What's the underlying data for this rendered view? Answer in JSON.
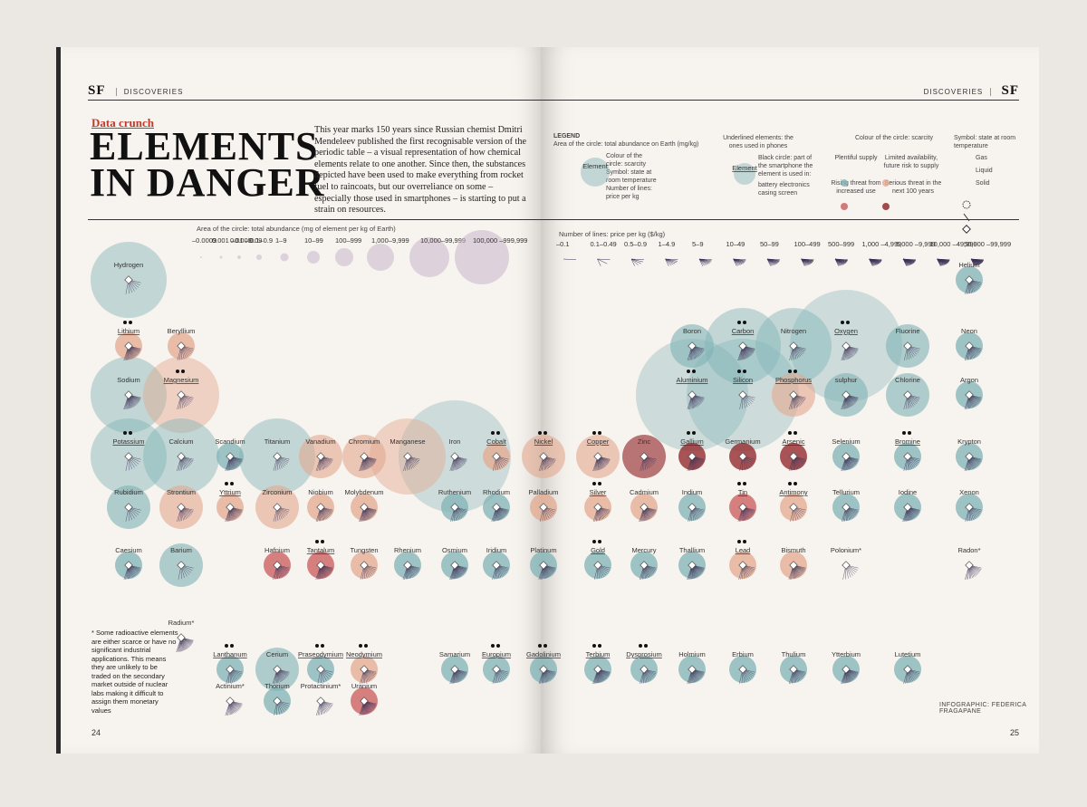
{
  "header": {
    "section": "DISCOVERIES",
    "logo": "SF"
  },
  "kicker": "Data crunch",
  "title_line1": "ELEMENTS",
  "title_line2": "IN DANGER",
  "intro": "This year marks 150 years since Russian chemist Dmitri Mendeleev published the first recognisable version of the periodic table – a visual representation of how chemical elements relate to one another. Since then, the substances depicted have been used to make everything from rocket fuel to raincoats, but our overreliance on some – especially those used in smartphones – is starting to put a strain on resources.",
  "legend": {
    "heading": "LEGEND",
    "area": "Area of the circle: total abundance on Earth (mg/kg)",
    "colour": "Colour of the circle: scarcity",
    "symbol": "Symbol: state at room temperature",
    "lines": "Number of lines: price per kg",
    "element": "Element",
    "underlined": "Underlined elements: the ones used in phones",
    "black_circle": "Black circle: part of the smartphone the element is used in:",
    "parts": "battery  electronics  casing  screen",
    "colour_scarcity": "Colour of the circle: scarcity",
    "plentiful": "Plentiful supply",
    "limited": "Limited availability, future risk to supply",
    "rising": "Rising threat from increased use",
    "serious": "Serious threat in the next 100 years",
    "symbol_state": "Symbol: state at room temperature",
    "gas": "Gas",
    "liquid": "Liquid",
    "solid": "Solid"
  },
  "scale_area": {
    "title": "Area of the circle: total abundance (mg of element per kg of Earth)",
    "labels": [
      "–0.0009",
      "0.001 –0.009",
      "0.01 –0.09",
      "0.1–0.9",
      "1–9",
      "10–99",
      "100–999",
      "1,000–9,999",
      "10,000–99,999",
      "100,000 –999,999"
    ]
  },
  "scale_lines": {
    "title": "Number of lines: price per kg ($/kg)",
    "labels": [
      "–0.1",
      "0.1–0.49",
      "0.5–0.9",
      "1–4.9",
      "5–9",
      "10–49",
      "50–99",
      "100–499",
      "500–999",
      "1,000 –4,999",
      "5,000 –9,999",
      "10,000 –49,999",
      "50,000 –99,999"
    ]
  },
  "footnote": "* Some radioactive elements are either scarce or have no significant industrial applications. This means they are unlikely to be traded on the secondary market outside of nuclear labs making it difficult to assign them monetary values",
  "credit": "INFOGRAPHIC: FEDERICA FRAGAPANE",
  "page_left": "24",
  "page_right": "25",
  "colors": {
    "plentiful": "#7fb3b5",
    "limited": "#e3a98f",
    "rising": "#c95a5a",
    "serious": "#8e1f23",
    "ink": "#3a2f55"
  },
  "elements": [
    {
      "n": "Hydrogen",
      "s": "plentiful",
      "a": "l"
    },
    {
      "n": "Helium",
      "s": "plentiful",
      "a": "s"
    },
    {
      "n": "Lithium",
      "s": "limited",
      "a": "s",
      "p": true
    },
    {
      "n": "Beryllium",
      "s": "limited",
      "a": "s"
    },
    {
      "n": "Boron",
      "s": "plentiful",
      "a": "m"
    },
    {
      "n": "Carbon",
      "s": "plentiful",
      "a": "l",
      "p": true
    },
    {
      "n": "Nitrogen",
      "s": "plentiful",
      "a": "l"
    },
    {
      "n": "Oxygen",
      "s": "plentiful",
      "a": "xl",
      "p": true
    },
    {
      "n": "Fluorine",
      "s": "plentiful",
      "a": "m"
    },
    {
      "n": "Neon",
      "s": "plentiful",
      "a": "s"
    },
    {
      "n": "Sodium",
      "s": "plentiful",
      "a": "l"
    },
    {
      "n": "Magnesium",
      "s": "limited",
      "a": "l",
      "p": true
    },
    {
      "n": "Aluminium",
      "s": "plentiful",
      "a": "xl",
      "p": true
    },
    {
      "n": "Silicon",
      "s": "plentiful",
      "a": "xl",
      "p": true
    },
    {
      "n": "Phosphorus",
      "s": "limited",
      "a": "m",
      "p": true
    },
    {
      "n": "sulphur",
      "s": "plentiful",
      "a": "m"
    },
    {
      "n": "Chlorine",
      "s": "plentiful",
      "a": "m"
    },
    {
      "n": "Argon",
      "s": "plentiful",
      "a": "s"
    },
    {
      "n": "Potassium",
      "s": "plentiful",
      "a": "l",
      "p": true
    },
    {
      "n": "Calcium",
      "s": "plentiful",
      "a": "l"
    },
    {
      "n": "Scandium",
      "s": "plentiful",
      "a": "s"
    },
    {
      "n": "Titanium",
      "s": "plentiful",
      "a": "l"
    },
    {
      "n": "Vanadium",
      "s": "limited",
      "a": "m"
    },
    {
      "n": "Chromium",
      "s": "limited",
      "a": "m"
    },
    {
      "n": "Manganese",
      "s": "limited",
      "a": "l"
    },
    {
      "n": "Iron",
      "s": "plentiful",
      "a": "xl"
    },
    {
      "n": "Cobalt",
      "s": "limited",
      "a": "s",
      "p": true
    },
    {
      "n": "Nickel",
      "s": "limited",
      "a": "m",
      "p": true
    },
    {
      "n": "Copper",
      "s": "limited",
      "a": "m",
      "p": true
    },
    {
      "n": "Zinc",
      "s": "serious",
      "a": "m"
    },
    {
      "n": "Gallium",
      "s": "serious",
      "a": "s",
      "p": true
    },
    {
      "n": "Germanium",
      "s": "serious",
      "a": "s"
    },
    {
      "n": "Arsenic",
      "s": "serious",
      "a": "s",
      "p": true
    },
    {
      "n": "Selenium",
      "s": "plentiful",
      "a": "s"
    },
    {
      "n": "Bromine",
      "s": "plentiful",
      "a": "s",
      "p": true
    },
    {
      "n": "Krypton",
      "s": "plentiful",
      "a": "s"
    },
    {
      "n": "Rubidium",
      "s": "plentiful",
      "a": "m"
    },
    {
      "n": "Strontium",
      "s": "limited",
      "a": "m"
    },
    {
      "n": "Yttrium",
      "s": "limited",
      "a": "s",
      "p": true
    },
    {
      "n": "Zirconium",
      "s": "limited",
      "a": "m"
    },
    {
      "n": "Niobium",
      "s": "limited",
      "a": "s"
    },
    {
      "n": "Molybdenum",
      "s": "limited",
      "a": "s"
    },
    {
      "n": "Ruthenium",
      "s": "plentiful",
      "a": "s"
    },
    {
      "n": "Rhodium",
      "s": "plentiful",
      "a": "s"
    },
    {
      "n": "Palladium",
      "s": "limited",
      "a": "s"
    },
    {
      "n": "Silver",
      "s": "limited",
      "a": "s",
      "p": true
    },
    {
      "n": "Cadmium",
      "s": "limited",
      "a": "s"
    },
    {
      "n": "Indium",
      "s": "plentiful",
      "a": "s"
    },
    {
      "n": "Tin",
      "s": "rising",
      "a": "s",
      "p": true
    },
    {
      "n": "Antimony",
      "s": "limited",
      "a": "s",
      "p": true
    },
    {
      "n": "Tellurium",
      "s": "plentiful",
      "a": "s"
    },
    {
      "n": "Iodine",
      "s": "plentiful",
      "a": "s"
    },
    {
      "n": "Xenon",
      "s": "plentiful",
      "a": "s"
    },
    {
      "n": "Caesium",
      "s": "plentiful",
      "a": "s"
    },
    {
      "n": "Barium",
      "s": "plentiful",
      "a": "m"
    },
    {
      "n": "Hafnium",
      "s": "rising",
      "a": "s"
    },
    {
      "n": "Tantalum",
      "s": "rising",
      "a": "s",
      "p": true
    },
    {
      "n": "Tungsten",
      "s": "limited",
      "a": "s"
    },
    {
      "n": "Rhenium",
      "s": "plentiful",
      "a": "s"
    },
    {
      "n": "Osmium",
      "s": "plentiful",
      "a": "s"
    },
    {
      "n": "Iridium",
      "s": "plentiful",
      "a": "s"
    },
    {
      "n": "Platinum",
      "s": "plentiful",
      "a": "s"
    },
    {
      "n": "Gold",
      "s": "plentiful",
      "a": "s",
      "p": true
    },
    {
      "n": "Mercury",
      "s": "plentiful",
      "a": "s"
    },
    {
      "n": "Thallium",
      "s": "plentiful",
      "a": "s"
    },
    {
      "n": "Lead",
      "s": "limited",
      "a": "s",
      "p": true
    },
    {
      "n": "Bismuth",
      "s": "limited",
      "a": "s"
    },
    {
      "n": "Polonium*",
      "s": "none",
      "a": "s"
    },
    {
      "n": "Radon*",
      "s": "none",
      "a": "s"
    },
    {
      "n": "Radium*",
      "s": "none",
      "a": "s"
    },
    {
      "n": "Lanthanum",
      "s": "plentiful",
      "a": "s",
      "p": true
    },
    {
      "n": "Cerium",
      "s": "plentiful",
      "a": "m"
    },
    {
      "n": "Praseodymium",
      "s": "plentiful",
      "a": "s",
      "p": true
    },
    {
      "n": "Neodymium",
      "s": "limited",
      "a": "s",
      "p": true
    },
    {
      "n": "Samarium",
      "s": "plentiful",
      "a": "s"
    },
    {
      "n": "Europium",
      "s": "plentiful",
      "a": "s",
      "p": true
    },
    {
      "n": "Gadolinium",
      "s": "plentiful",
      "a": "s",
      "p": true
    },
    {
      "n": "Terbium",
      "s": "plentiful",
      "a": "s",
      "p": true
    },
    {
      "n": "Dysprosium",
      "s": "plentiful",
      "a": "s",
      "p": true
    },
    {
      "n": "Holmium",
      "s": "plentiful",
      "a": "s"
    },
    {
      "n": "Erbium",
      "s": "plentiful",
      "a": "s"
    },
    {
      "n": "Thulium",
      "s": "plentiful",
      "a": "s"
    },
    {
      "n": "Ytterbium",
      "s": "plentiful",
      "a": "s"
    },
    {
      "n": "Lutetium",
      "s": "plentiful",
      "a": "s"
    },
    {
      "n": "Actinium*",
      "s": "none",
      "a": "s"
    },
    {
      "n": "Thorium",
      "s": "plentiful",
      "a": "s"
    },
    {
      "n": "Protactinium*",
      "s": "none",
      "a": "s"
    },
    {
      "n": "Uranium",
      "s": "rising",
      "a": "s"
    }
  ]
}
